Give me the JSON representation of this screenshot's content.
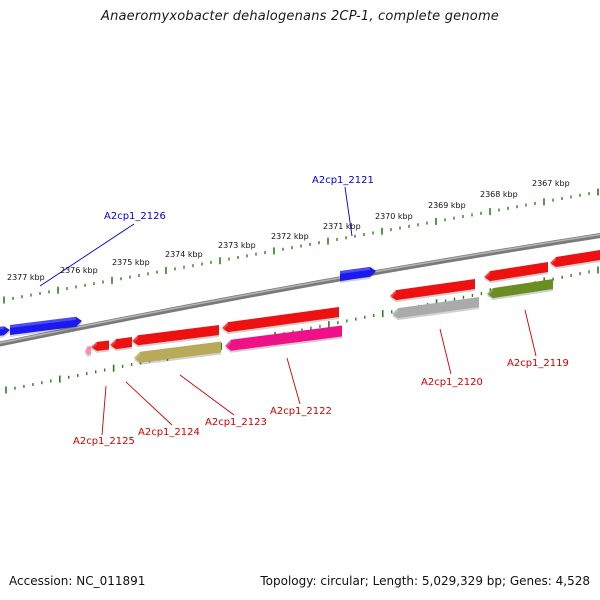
{
  "title": "Anaeromyxobacter dehalogenans 2CP-1, complete genome",
  "colors": {
    "backbone": "#7a7a7a",
    "ticks": "#2e7d1f",
    "forward_cds": "#0000ee",
    "reverse_cds": "#ee0000",
    "label_forward": "#0000cc",
    "label_reverse": "#cc0000"
  },
  "scale_ticks": [
    {
      "label": "2377 kbp"
    },
    {
      "label": "2376 kbp"
    },
    {
      "label": "2375 kbp"
    },
    {
      "label": "2374 kbp"
    },
    {
      "label": "2373 kbp"
    },
    {
      "label": "2372 kbp"
    },
    {
      "label": "2371 kbp"
    },
    {
      "label": "2370 kbp"
    },
    {
      "label": "2369 kbp"
    },
    {
      "label": "2368 kbp"
    },
    {
      "label": "2367 kbp"
    }
  ],
  "features": [
    {
      "id": "f0",
      "strand": "forward",
      "color": "#1a1aee"
    },
    {
      "id": "f1",
      "strand": "forward",
      "color": "#1a1aee"
    },
    {
      "id": "f2",
      "strand": "forward",
      "color": "#1a1aee"
    },
    {
      "id": "f3",
      "strand": "reverse",
      "color": "#ee1111"
    },
    {
      "id": "f4",
      "strand": "reverse",
      "color": "#ee1111"
    },
    {
      "id": "f5",
      "strand": "reverse",
      "color": "#ee1111"
    },
    {
      "id": "f6",
      "strand": "reverse",
      "color": "#ee1111"
    },
    {
      "id": "f7",
      "strand": "reverse",
      "color": "#ee1111"
    },
    {
      "id": "f8",
      "strand": "reverse",
      "color": "#ee1111"
    },
    {
      "id": "f9",
      "strand": "reverse",
      "color": "#ee1111"
    },
    {
      "id": "f10",
      "strand": "reverse",
      "color": "#ff88aa"
    },
    {
      "id": "f11",
      "strand": "reverse",
      "color": "#b9aa5a"
    },
    {
      "id": "f12",
      "strand": "reverse",
      "color": "#ee1188"
    },
    {
      "id": "f13",
      "strand": "reverse",
      "color": "#aaaaaa"
    },
    {
      "id": "f14",
      "strand": "reverse",
      "color": "#6b8e23"
    }
  ],
  "gene_labels": [
    {
      "text": "A2cp1_2126",
      "strand": "forward"
    },
    {
      "text": "A2cp1_2121",
      "strand": "forward"
    },
    {
      "text": "A2cp1_2125",
      "strand": "reverse"
    },
    {
      "text": "A2cp1_2124",
      "strand": "reverse"
    },
    {
      "text": "A2cp1_2123",
      "strand": "reverse"
    },
    {
      "text": "A2cp1_2122",
      "strand": "reverse"
    },
    {
      "text": "A2cp1_2120",
      "strand": "reverse"
    },
    {
      "text": "A2cp1_2119",
      "strand": "reverse"
    }
  ],
  "footer": {
    "accession": "Accession: NC_011891",
    "summary": "Topology: circular; Length: 5,029,329 bp; Genes: 4,528"
  }
}
